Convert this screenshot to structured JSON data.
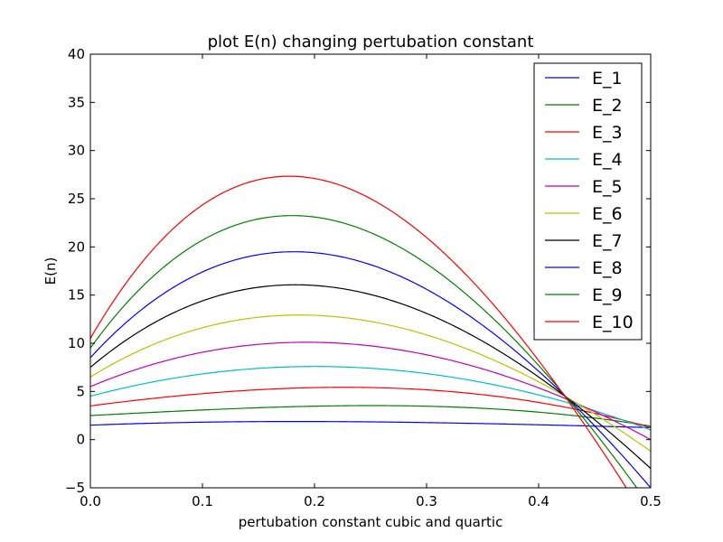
{
  "chart_data": {
    "type": "line",
    "title": "plot E(n) changing pertubation constant",
    "xlabel": "pertubation constant cubic and quartic",
    "ylabel": "E(n)",
    "xlim": [
      0.0,
      0.5
    ],
    "ylim": [
      -5,
      40
    ],
    "x_ticks": [
      "0.0",
      "0.1",
      "0.2",
      "0.3",
      "0.4",
      "0.5"
    ],
    "y_ticks": [
      "−5",
      "0",
      "5",
      "10",
      "15",
      "20",
      "25",
      "30",
      "35",
      "40"
    ],
    "grid": false,
    "legend_position": "top-right",
    "x": [
      0.0,
      0.2,
      0.4,
      0.5
    ],
    "series": [
      {
        "name": "E_1",
        "color": "#0000ff",
        "values": [
          1.5,
          1.88,
          1.54,
          1.25
        ]
      },
      {
        "name": "E_2",
        "color": "#008000",
        "values": [
          2.5,
          3.47,
          2.85,
          1.4
        ]
      },
      {
        "name": "E_3",
        "color": "#ff0000",
        "values": [
          3.5,
          5.4,
          3.86,
          1.25
        ]
      },
      {
        "name": "E_4",
        "color": "#00bfbf",
        "values": [
          4.5,
          7.59,
          4.64,
          1.0
        ]
      },
      {
        "name": "E_5",
        "color": "#bf00bf",
        "values": [
          5.5,
          10.1,
          5.37,
          0.0
        ]
      },
      {
        "name": "E_6",
        "color": "#bfbf00",
        "values": [
          6.5,
          12.9,
          6.0,
          -1.2
        ]
      },
      {
        "name": "E_7",
        "color": "#000000",
        "values": [
          7.5,
          16.0,
          6.5,
          -3.0
        ]
      },
      {
        "name": "E_8",
        "color": "#0000ff",
        "values": [
          8.5,
          19.4,
          7.1,
          -5.0
        ]
      },
      {
        "name": "E_9",
        "color": "#008000",
        "values": [
          9.5,
          23.1,
          7.7,
          -7.0
        ]
      },
      {
        "name": "E_10",
        "color": "#ff0000",
        "values": [
          10.5,
          27.1,
          8.2,
          -9.0
        ]
      }
    ]
  }
}
